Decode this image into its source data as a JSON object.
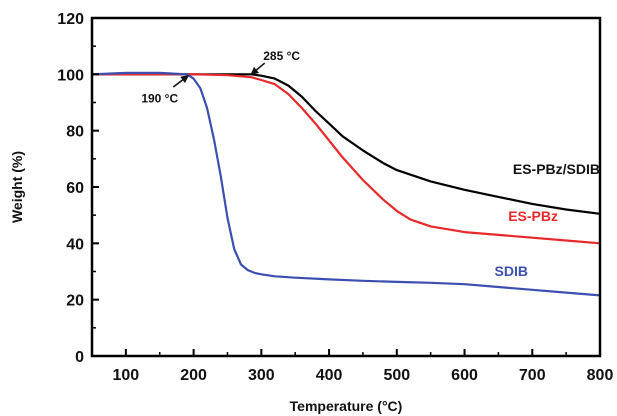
{
  "chart_data": {
    "type": "line",
    "xlabel": "Temperature (°C)",
    "ylabel": "Weight (%)",
    "xlim": [
      50,
      800
    ],
    "ylim": [
      0,
      120
    ],
    "x_ticks": [
      100,
      200,
      300,
      400,
      500,
      600,
      700,
      800
    ],
    "x_tick_labels": [
      "100",
      "200",
      "300",
      "400",
      "500",
      "600",
      "700",
      "800"
    ],
    "y_ticks": [
      0,
      20,
      40,
      60,
      80,
      100,
      120
    ],
    "y_tick_labels": [
      "0",
      "20",
      "40",
      "60",
      "80",
      "100",
      "120"
    ],
    "grid": false,
    "legend": "none",
    "series": [
      {
        "name": "ES-PBz/SDIB",
        "color": "#000000",
        "x": [
          50,
          100,
          150,
          200,
          250,
          285,
          300,
          320,
          340,
          360,
          380,
          400,
          420,
          450,
          480,
          500,
          550,
          600,
          650,
          700,
          750,
          800
        ],
        "y": [
          100,
          100,
          100,
          100,
          100,
          100,
          99.5,
          98.5,
          96,
          92,
          87,
          82.5,
          78,
          73,
          68.5,
          66,
          62,
          59,
          56.5,
          54,
          52,
          50.5
        ]
      },
      {
        "name": "ES-PBz",
        "color": "#e8282a",
        "x": [
          50,
          100,
          150,
          200,
          250,
          285,
          300,
          320,
          340,
          360,
          380,
          400,
          420,
          450,
          480,
          500,
          520,
          550,
          600,
          650,
          700,
          750,
          800
        ],
        "y": [
          100,
          100,
          100,
          100,
          99.7,
          99,
          98,
          96.5,
          93,
          88,
          82.5,
          76.5,
          70.5,
          62.5,
          55.5,
          51.5,
          48.5,
          46,
          44,
          43,
          42,
          41,
          40
        ]
      },
      {
        "name": "SDIB",
        "color": "#3c4fb0",
        "x": [
          50,
          100,
          150,
          190,
          200,
          210,
          220,
          230,
          240,
          250,
          260,
          270,
          280,
          290,
          300,
          320,
          350,
          400,
          450,
          500,
          550,
          600,
          650,
          700,
          750,
          800
        ],
        "y": [
          100,
          100.5,
          100.5,
          100,
          98.5,
          95,
          88,
          77,
          64,
          49,
          38,
          32.5,
          30.5,
          29.5,
          29,
          28.3,
          27.8,
          27.2,
          26.7,
          26.3,
          26,
          25.5,
          24.5,
          23.5,
          22.5,
          21.5
        ]
      }
    ],
    "series_labels": [
      {
        "text": "ES-PBz/SDIB",
        "color": "#000000"
      },
      {
        "text": "ES-PBz",
        "color": "#e8282a"
      },
      {
        "text": "SDIB",
        "color": "#3c4fb0"
      }
    ],
    "annotations": [
      {
        "text": "285 °C",
        "arrow_tip": [
          285,
          100
        ],
        "arrow_tail": [
          305,
          104
        ],
        "label_at": [
          330,
          106.5
        ]
      },
      {
        "text": "190 °C",
        "arrow_tip": [
          192,
          99.5
        ],
        "arrow_tail": [
          170,
          95.5
        ],
        "label_at": [
          150,
          91.5
        ]
      }
    ]
  }
}
